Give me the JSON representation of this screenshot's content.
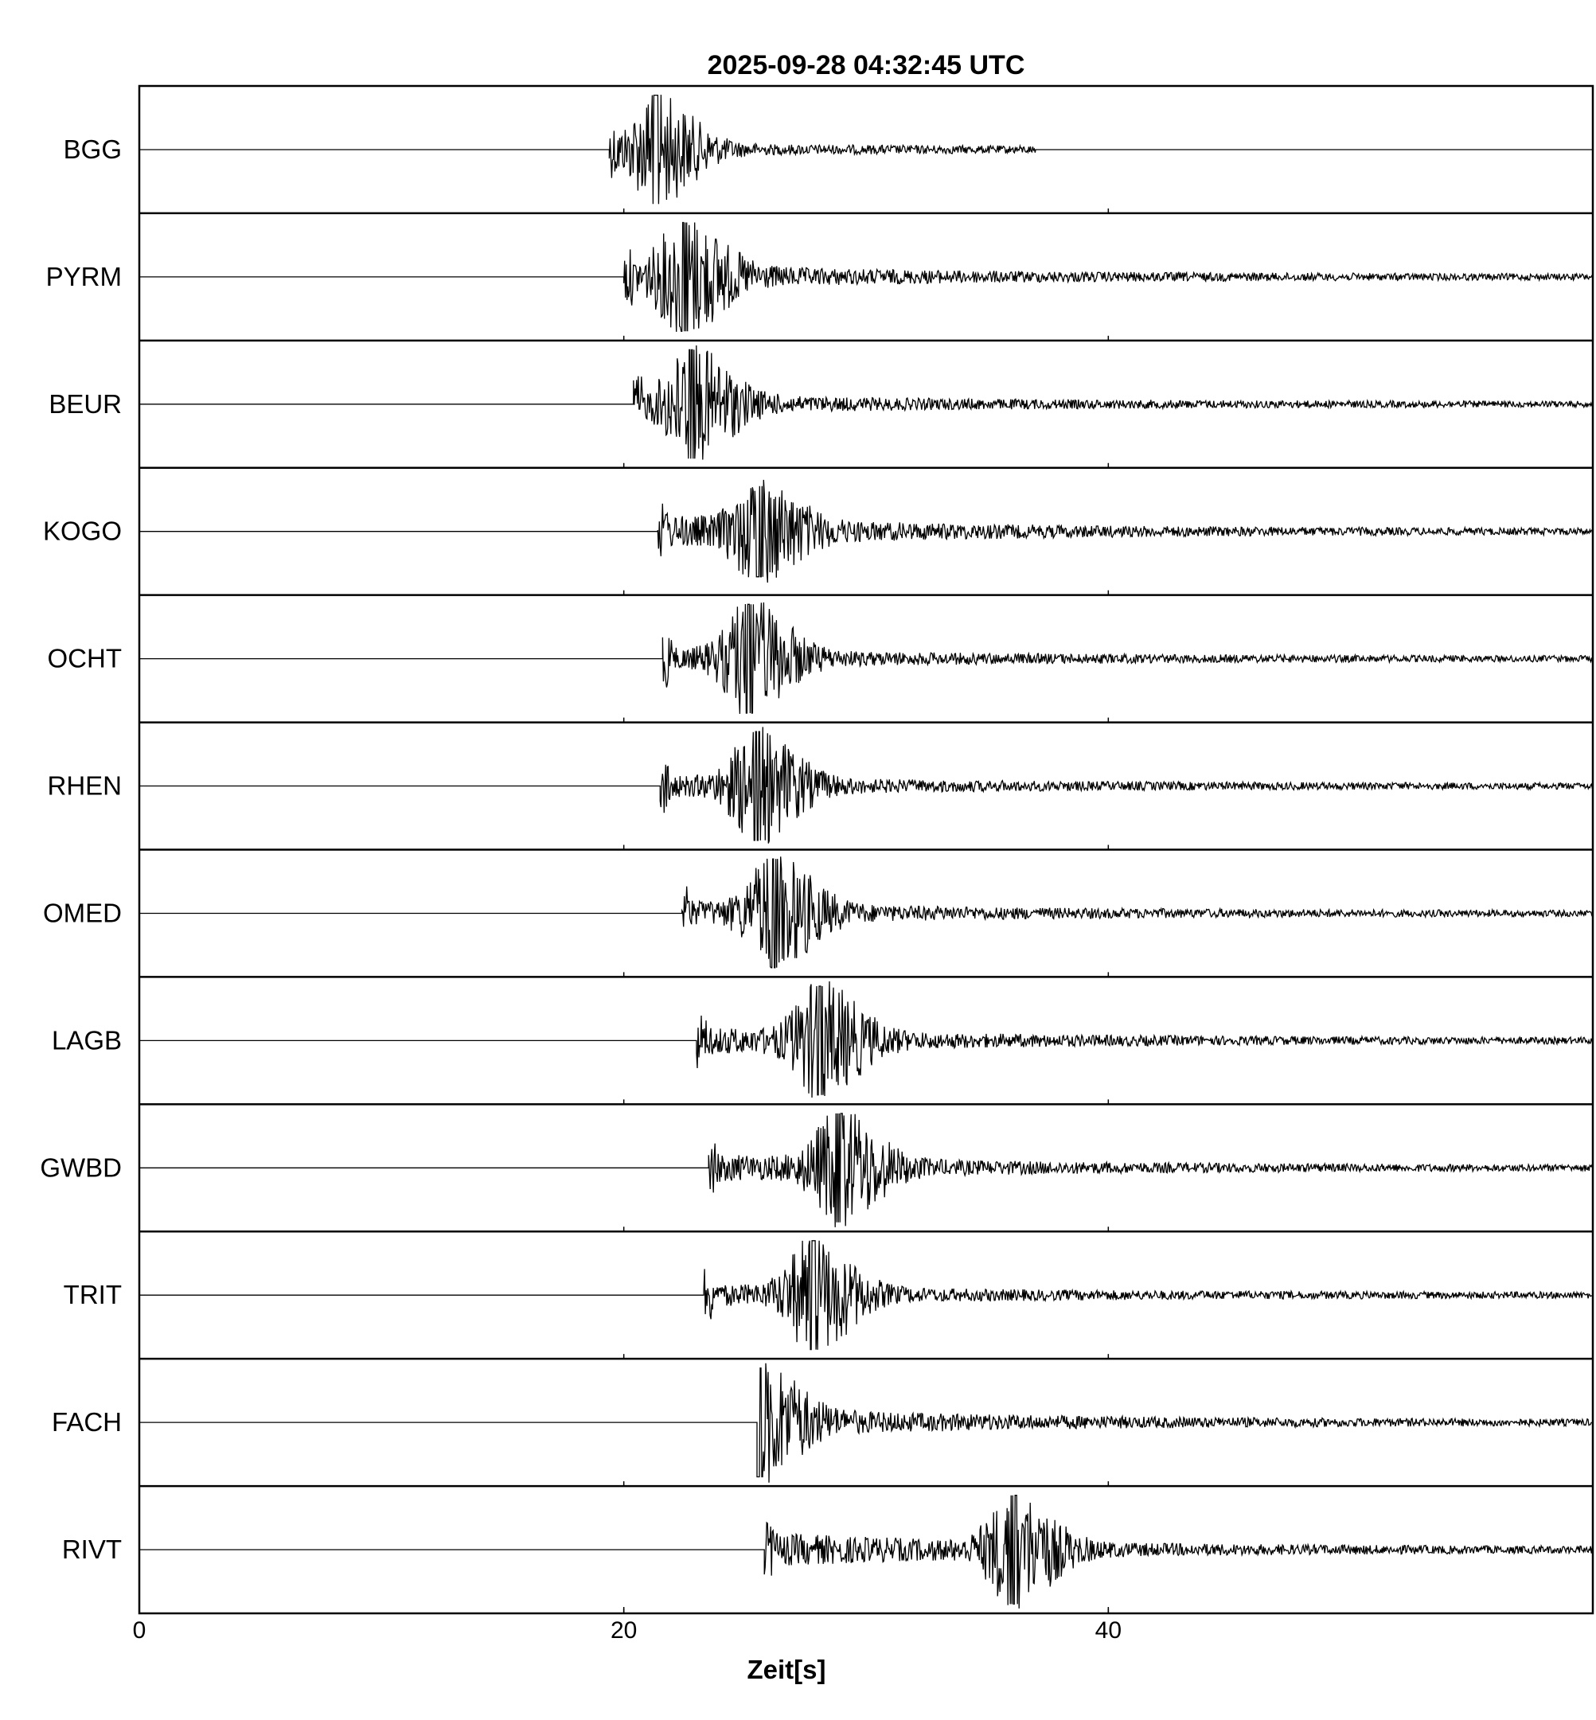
{
  "chart_data": {
    "type": "line",
    "title": "2025-09-28  04:32:45 UTC",
    "xlabel": "Zeit[s]",
    "ylabel": "",
    "xlim": [
      0,
      60
    ],
    "xticks": [
      0,
      20,
      40
    ],
    "xtick_labels": [
      "0",
      "20",
      "40"
    ],
    "grid": false,
    "series": [
      {
        "name": "BGG",
        "onset_s": 19.4,
        "peak_s": 21.3,
        "end_s": 37.0,
        "peak_amp": 0.9,
        "coda_amp": 0.15
      },
      {
        "name": "PYRM",
        "onset_s": 20.0,
        "peak_s": 22.5,
        "end_s": 60.0,
        "peak_amp": 0.9,
        "coda_amp": 0.4
      },
      {
        "name": "BEUR",
        "onset_s": 20.4,
        "peak_s": 22.8,
        "end_s": 60.0,
        "peak_amp": 0.9,
        "coda_amp": 0.3
      },
      {
        "name": "KOGO",
        "onset_s": 21.4,
        "peak_s": 25.6,
        "end_s": 60.0,
        "peak_amp": 0.75,
        "coda_amp": 0.5
      },
      {
        "name": "OCHT",
        "onset_s": 21.6,
        "peak_s": 25.2,
        "end_s": 60.0,
        "peak_amp": 0.9,
        "coda_amp": 0.3
      },
      {
        "name": "RHEN",
        "onset_s": 21.5,
        "peak_s": 25.5,
        "end_s": 60.0,
        "peak_amp": 0.9,
        "coda_amp": 0.3
      },
      {
        "name": "OMED",
        "onset_s": 22.4,
        "peak_s": 26.2,
        "end_s": 60.0,
        "peak_amp": 0.9,
        "coda_amp": 0.35
      },
      {
        "name": "LAGB",
        "onset_s": 23.0,
        "peak_s": 28.1,
        "end_s": 60.0,
        "peak_amp": 0.9,
        "coda_amp": 0.4
      },
      {
        "name": "GWBD",
        "onset_s": 23.5,
        "peak_s": 28.9,
        "end_s": 60.0,
        "peak_amp": 0.9,
        "coda_amp": 0.4
      },
      {
        "name": "TRIT",
        "onset_s": 23.3,
        "peak_s": 27.8,
        "end_s": 60.0,
        "peak_amp": 0.9,
        "coda_amp": 0.3
      },
      {
        "name": "FACH",
        "onset_s": 25.5,
        "peak_s": 25.6,
        "end_s": 60.0,
        "peak_amp": 0.9,
        "coda_amp": 0.4
      },
      {
        "name": "RIVT",
        "onset_s": 25.8,
        "peak_s": 36.1,
        "end_s": 60.0,
        "peak_amp": 0.9,
        "coda_amp": 0.5
      }
    ]
  }
}
